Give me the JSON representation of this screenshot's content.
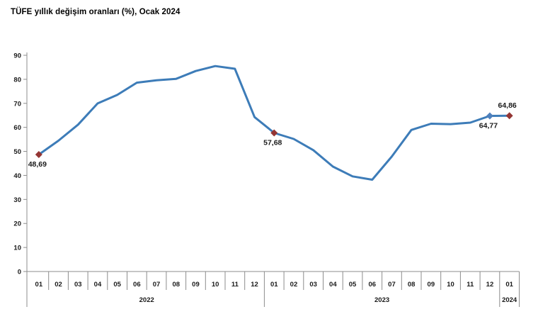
{
  "title": "TÜFE yıllık değişim oranları (%), Ocak 2024",
  "colors": {
    "line": "#3d7cb8",
    "marker_primary": "#943634",
    "marker_secondary": "#4f81bd",
    "axis": "#8c8c8c",
    "text": "#1a1a1a"
  },
  "chart_data": {
    "type": "line",
    "title": "TÜFE yıllık değişim oranları (%), Ocak 2024",
    "xlabel": "",
    "ylabel": "",
    "ylim": [
      0,
      90
    ],
    "y_tick_step": 10,
    "grid": false,
    "legend": false,
    "categories": [
      "01",
      "02",
      "03",
      "04",
      "05",
      "06",
      "07",
      "08",
      "09",
      "10",
      "11",
      "12",
      "01",
      "02",
      "03",
      "04",
      "05",
      "06",
      "07",
      "08",
      "09",
      "10",
      "11",
      "12",
      "01"
    ],
    "x_groups": [
      {
        "label": "2022",
        "start": 0,
        "count": 12
      },
      {
        "label": "2023",
        "start": 12,
        "count": 12
      },
      {
        "label": "2024",
        "start": 24,
        "count": 1
      }
    ],
    "series": [
      {
        "name": "TÜFE yıllık değişim oranı",
        "values": [
          48.69,
          54.44,
          61.14,
          69.97,
          73.5,
          78.62,
          79.6,
          80.21,
          83.45,
          85.51,
          84.39,
          64.27,
          57.68,
          55.18,
          50.51,
          43.68,
          39.59,
          38.21,
          47.83,
          58.94,
          61.53,
          61.36,
          61.98,
          64.77,
          64.86
        ]
      }
    ],
    "annotations": [
      {
        "index": 0,
        "label": "48,69",
        "placement": "below",
        "marker": "primary"
      },
      {
        "index": 12,
        "label": "57,68",
        "placement": "below",
        "marker": "primary"
      },
      {
        "index": 23,
        "label": "64,77",
        "placement": "below",
        "marker": "secondary"
      },
      {
        "index": 24,
        "label": "64,86",
        "placement": "above",
        "marker": "primary"
      }
    ]
  }
}
